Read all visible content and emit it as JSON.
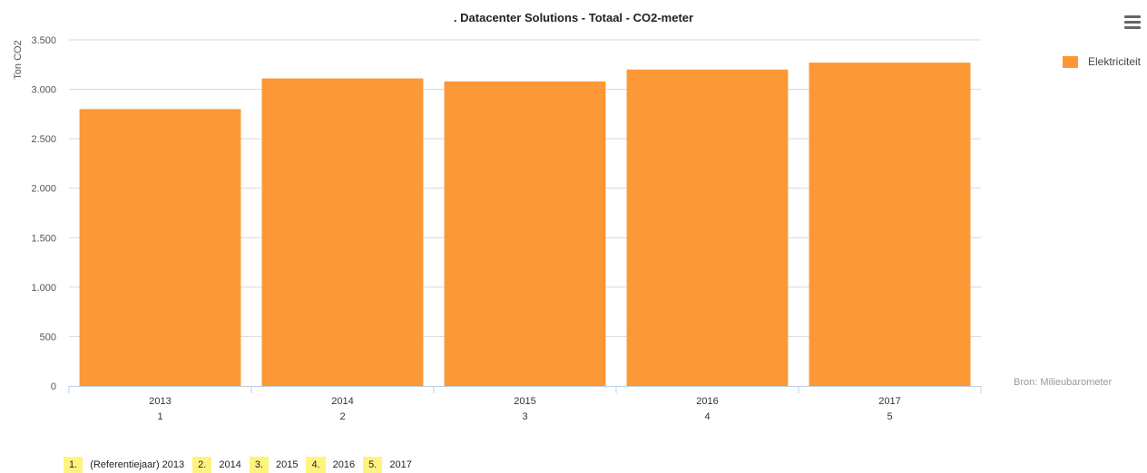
{
  "colors": {
    "bar": "#fc9835",
    "grid": "#d9d9d9",
    "axis": "#c0d0e0",
    "footer_badge": "#fff37f"
  },
  "menu": {
    "icon": "hamburger-menu-icon"
  },
  "source_text": "Bron: Milieubarometer",
  "footer": {
    "items": [
      {
        "num": "1.",
        "label": "(Referentiejaar) 2013"
      },
      {
        "num": "2.",
        "label": "2014"
      },
      {
        "num": "3.",
        "label": "2015"
      },
      {
        "num": "4.",
        "label": "2016"
      },
      {
        "num": "5.",
        "label": "2017"
      }
    ]
  },
  "chart_data": {
    "type": "bar",
    "title": ". Datacenter Solutions - Totaal - CO2-meter",
    "xlabel": "",
    "ylabel": "Ton CO2",
    "categories": [
      "2013",
      "2014",
      "2015",
      "2016",
      "2017"
    ],
    "category_sublabels": [
      "1",
      "2",
      "3",
      "4",
      "5"
    ],
    "series": [
      {
        "name": "Elektriciteit",
        "values": [
          2800,
          3110,
          3080,
          3200,
          3270
        ]
      }
    ],
    "ylim": [
      0,
      3500
    ],
    "yticks": [
      0,
      500,
      1000,
      1500,
      2000,
      2500,
      3000,
      3500
    ],
    "ytick_labels": [
      "0",
      "500",
      "1.000",
      "1.500",
      "2.000",
      "2.500",
      "3.000",
      "3.500"
    ],
    "grid": true,
    "legend_position": "top-right"
  }
}
